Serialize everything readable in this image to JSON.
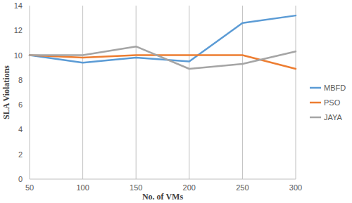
{
  "chart_data": {
    "type": "line",
    "x_label": "No. of VMs",
    "y_label": "SLA Violations",
    "categories": [
      "50",
      "100",
      "150",
      "200",
      "250",
      "300"
    ],
    "series": [
      {
        "name": "MBFD",
        "color": "#5b9bd5",
        "values": [
          10,
          9.4,
          9.8,
          9.5,
          12.6,
          13.2
        ]
      },
      {
        "name": "PSO",
        "color": "#ed7d31",
        "values": [
          10,
          9.8,
          10,
          10,
          10,
          8.9
        ]
      },
      {
        "name": "JAYA",
        "color": "#a5a5a5",
        "values": [
          10,
          10,
          10.7,
          8.9,
          9.3,
          10.3
        ]
      }
    ],
    "ylim": [
      0,
      14
    ],
    "yticks": [
      0,
      2,
      4,
      6,
      8,
      10,
      12,
      14
    ],
    "grid": true,
    "legend": "right"
  }
}
